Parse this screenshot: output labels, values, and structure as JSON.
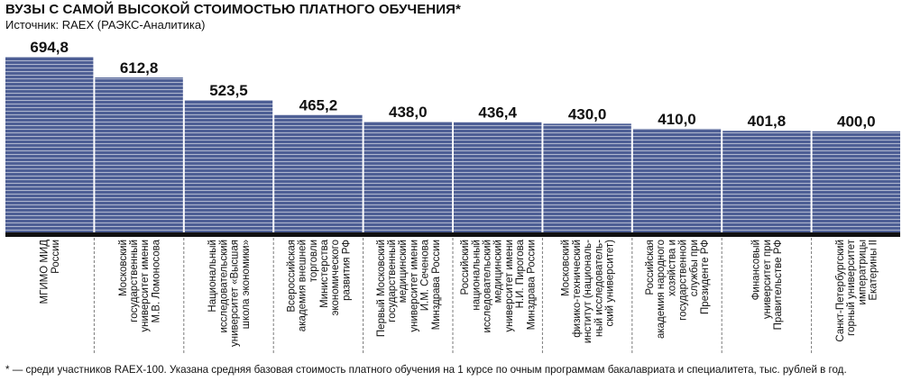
{
  "title": "ВУЗЫ С САМОЙ ВЫСОКОЙ СТОИМОСТЬЮ ПЛАТНОГО ОБУЧЕНИЯ*",
  "source": "Источник: RAEX (РАЭКС-Аналитика)",
  "footnote": "* — среди участников RAEX-100. Указана средняя базовая стоимость платного обучения на 1 курсе по очным программам бакалавриата и специалитета, тыс. рублей в год.",
  "colors": {
    "bar": "#4e5f95",
    "bar_stripe": "#ffffff",
    "baseline": "#111111",
    "separator": "#7a7a7a",
    "text": "#111111"
  },
  "chart_data": {
    "type": "bar",
    "categories": [
      "МГИМО МИД России",
      "Московский государственный университет имени М.В. Ломоносова",
      "Национальный исследовательский университет «Высшая школа экономики»",
      "Всероссийская академия внешней торговли Министерства экономического развития РФ",
      "Первый Московский государственный медицинский университет имени И.М. Сеченова Минздрава России",
      "Российский национальный исследовательский медицинский университет имени Н.И. Пирогова Минздрава России",
      "Московский физико-технический институт (национальный исследовательский университет)",
      "Российская академия народного хозяйства и государственной службы при Президенте РФ",
      "Финансовый университет при Правительстве РФ",
      "Санкт-Петербургский горный университет императрицы Екатерины II"
    ],
    "category_lines": [
      [
        "МГИМО МИД",
        "России"
      ],
      [
        "Московский",
        "государственный",
        "университет имени",
        "М.В. Ломоносова"
      ],
      [
        "Национальный",
        "исследовательский",
        "университет «Высшая",
        "школа экономики»"
      ],
      [
        "Всероссийская",
        "академия внешней",
        "торговли",
        "Министерства",
        "экономического",
        "развития РФ"
      ],
      [
        "Первый Московский",
        "государственный",
        "медицинский",
        "университет имени",
        "И.М. Сеченова",
        "Минздрава России"
      ],
      [
        "Российский",
        "национальный",
        "исследовательский",
        "медицинский",
        "университет имени",
        "Н.И. Пирогова",
        "Минздрава России"
      ],
      [
        "Московский",
        "физико-технический",
        "институт (националь-",
        "ный исследователь-",
        "ский университет)"
      ],
      [
        "Российская",
        "академия народного",
        "хозяйства и",
        "государственной",
        "службы при",
        "Президенте РФ"
      ],
      [
        "Финансовый",
        "университет при",
        "Правительстве РФ"
      ],
      [
        "Санкт-Петербургский",
        "горный университет",
        "императрицы",
        "Екатерины II"
      ]
    ],
    "values": [
      694.8,
      612.8,
      523.5,
      465.2,
      438.0,
      436.4,
      430.0,
      410.0,
      401.8,
      400.0
    ],
    "value_labels": [
      "694,8",
      "612,8",
      "523,5",
      "465,2",
      "438,0",
      "436,4",
      "430,0",
      "410,0",
      "401,8",
      "400,0"
    ],
    "ylim": [
      0,
      694.8
    ],
    "grid": false,
    "legend": "none"
  }
}
